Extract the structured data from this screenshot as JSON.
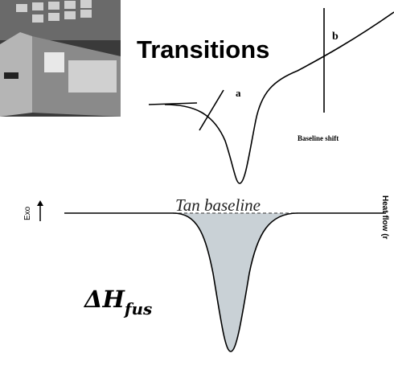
{
  "title": "Transitions",
  "labels": {
    "a": "a",
    "b": "b",
    "baseline_shift": "Baseline shift",
    "tan_baseline": "Tan baseline",
    "exo": "Exo",
    "heat_flow": "Heat flow (r",
    "delta_h": "ΔH",
    "delta_h_sub": "fus"
  }
}
